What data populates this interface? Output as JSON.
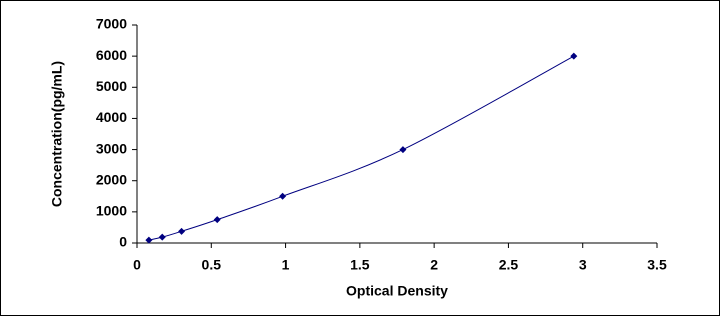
{
  "chart_data": {
    "type": "scatter-line",
    "x_label": "Optical Density",
    "y_label": "Concentration(pg/mL)",
    "x": [
      0.08,
      0.17,
      0.3,
      0.54,
      0.98,
      1.79,
      2.94
    ],
    "values": [
      94,
      188,
      375,
      750,
      1500,
      3000,
      6000
    ],
    "color": "#000080",
    "xlim": [
      0,
      3.5
    ],
    "xticks": [
      0,
      0.5,
      1,
      1.5,
      2,
      2.5,
      3,
      3.5
    ],
    "ylim": [
      0,
      7000
    ],
    "yticks": [
      0,
      1000,
      2000,
      3000,
      4000,
      5000,
      6000,
      7000
    ],
    "grid": false,
    "smooth": true
  }
}
